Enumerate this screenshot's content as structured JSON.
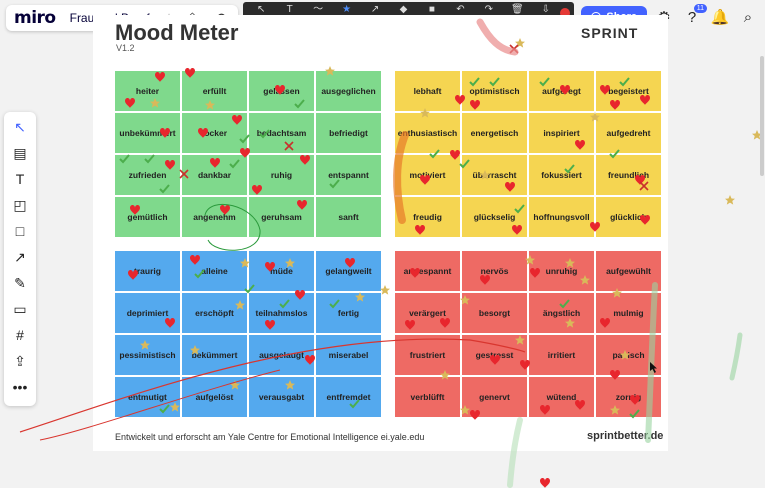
{
  "app": {
    "logo": "miro",
    "board_title": "Frau und Beruf",
    "share_label": "Share",
    "notifications_count": "11"
  },
  "annotation_toolbar": {
    "tools": [
      {
        "id": "maus",
        "label": "Maus",
        "glyph": "↖",
        "active": false
      },
      {
        "id": "text",
        "label": "Text",
        "glyph": "T",
        "active": false
      },
      {
        "id": "zeichnen",
        "label": "Zeichnen",
        "glyph": "〜",
        "active": false
      },
      {
        "id": "stempeln",
        "label": "Stempeln",
        "glyph": "★",
        "active": true
      },
      {
        "id": "pfeil",
        "label": "Pfeil",
        "glyph": "↗",
        "active": false
      },
      {
        "id": "radiergu",
        "label": "Radiergu",
        "glyph": "◆",
        "active": false
      },
      {
        "id": "farbe",
        "label": "Farbe",
        "glyph": "■",
        "active": false
      },
      {
        "id": "rueckgaeng",
        "label": "Rückgäng",
        "glyph": "↶",
        "active": false
      },
      {
        "id": "erneut",
        "label": "Erneut au",
        "glyph": "↷",
        "active": false
      },
      {
        "id": "loeschen",
        "label": "Löschen",
        "glyph": "🗑",
        "active": false
      },
      {
        "id": "speichern",
        "label": "Speichern",
        "glyph": "⇩",
        "active": false
      }
    ]
  },
  "left_tools": [
    {
      "name": "select-tool",
      "glyph": "↖"
    },
    {
      "name": "templates-tool",
      "glyph": "▤"
    },
    {
      "name": "text-tool",
      "glyph": "T"
    },
    {
      "name": "sticky-note-tool",
      "glyph": "◰"
    },
    {
      "name": "shape-tool",
      "glyph": "□"
    },
    {
      "name": "connection-line-tool",
      "glyph": "↗"
    },
    {
      "name": "pen-tool",
      "glyph": "✎"
    },
    {
      "name": "comment-tool",
      "glyph": "▭"
    },
    {
      "name": "frame-tool",
      "glyph": "#"
    },
    {
      "name": "upload-tool",
      "glyph": "⇪"
    },
    {
      "name": "more-tool",
      "glyph": "•••"
    }
  ],
  "board": {
    "title": "Mood Meter",
    "version": "V1.2",
    "brand": "SPRINT",
    "footer_left": "Entwickelt und erforscht am Yale Centre for Emotional Intelligence ei.yale.edu",
    "footer_right": "sprintbetter.de",
    "quadrants": {
      "green": [
        "heiter",
        "erfüllt",
        "gelassen",
        "ausgeglichen",
        "unbekümmert",
        "locker",
        "bedachtsam",
        "befriedigt",
        "zufrieden",
        "dankbar",
        "ruhig",
        "entspannt",
        "gemütlich",
        "angenehm",
        "geruhsam",
        "sanft"
      ],
      "yellow": [
        "lebhaft",
        "optimistisch",
        "aufgeregt",
        "begeistert",
        "enthusiastisch",
        "energetisch",
        "inspiriert",
        "aufgedreht",
        "motiviert",
        "überrascht",
        "fokussiert",
        "freundlich",
        "freudig",
        "glückselig",
        "hoffnungsvoll",
        "glücklich"
      ],
      "blue": [
        "traurig",
        "alleine",
        "müde",
        "gelangweilt",
        "deprimiert",
        "erschöpft",
        "teilnahmslos",
        "fertig",
        "pessimistisch",
        "bekümmert",
        "ausgelaugt",
        "miserabel",
        "entmutigt",
        "aufgelöst",
        "verausgabt",
        "entfremdet"
      ],
      "red": [
        "angespannt",
        "nervös",
        "unruhig",
        "aufgewühlt",
        "verärgert",
        "besorgt",
        "ängstlich",
        "mulmig",
        "frustriert",
        "gestresst",
        "irritiert",
        "panisch",
        "verblüfft",
        "genervt",
        "wütend",
        "zornig"
      ]
    }
  },
  "colors": {
    "green": "#7fd98c",
    "yellow": "#f5d551",
    "blue": "#54a9ee",
    "red": "#ee6a64",
    "accent": "#4262ff"
  }
}
